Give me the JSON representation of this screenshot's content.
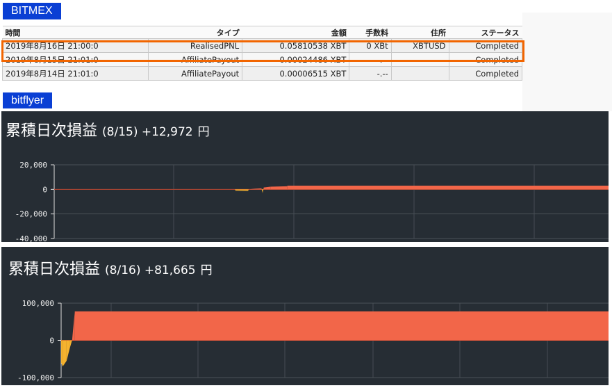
{
  "bitmex": {
    "label": "BITMEX",
    "columns": [
      "時間",
      "タイプ",
      "金額",
      "手数料",
      "住所",
      "ステータス"
    ],
    "rows": [
      [
        "2019年8月16日 21:00:0",
        "RealisedPNL",
        "0.05810538 XBT",
        "0 XBt",
        "XBTUSD",
        "Completed"
      ],
      [
        "2019年8月15日 21:01:0",
        "AffiliatePayout",
        "0.00024486 XBT",
        "-.--",
        "",
        "Completed"
      ],
      [
        "2019年8月14日 21:01:0",
        "AffiliatePayout",
        "0.00006515 XBT",
        "-.--",
        "",
        "Completed"
      ]
    ]
  },
  "bitflyer": {
    "label": "bitflyer"
  },
  "colors": {
    "positive": "#f26649",
    "negative": "#f5b22f",
    "highlight": "#f26500",
    "tag": "#0a3fd4"
  },
  "chart_data": [
    {
      "type": "area",
      "title": "累積日次損益",
      "subtitle": "(8/15) +12,972",
      "unit": "円",
      "yticks": [
        "20,000",
        "0",
        "-20,000",
        "-40,000"
      ],
      "ylim": [
        -40000,
        20000
      ],
      "grid": true,
      "points": [
        [
          0,
          0
        ],
        [
          32.6,
          0
        ],
        [
          32.7,
          -1000
        ],
        [
          35,
          -1200
        ],
        [
          35.1,
          0
        ],
        [
          36,
          500
        ],
        [
          37.4,
          800
        ],
        [
          37.6,
          -3000
        ],
        [
          37.8,
          1500
        ],
        [
          39,
          2200
        ],
        [
          42,
          2500
        ],
        [
          42.1,
          3000
        ],
        [
          100,
          3000
        ]
      ]
    },
    {
      "type": "area",
      "title": "累積日次損益",
      "subtitle": "(8/16) +81,665",
      "unit": "円",
      "yticks": [
        "100,000",
        "0",
        "-100,000"
      ],
      "ylim": [
        -100000,
        100000
      ],
      "grid": true,
      "points": [
        [
          0,
          -60000
        ],
        [
          0.3,
          -70000
        ],
        [
          1,
          -55000
        ],
        [
          1.6,
          -20000
        ],
        [
          2,
          0
        ],
        [
          2.5,
          78000
        ],
        [
          100,
          78000
        ]
      ]
    }
  ]
}
